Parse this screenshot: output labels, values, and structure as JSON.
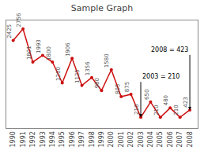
{
  "chart_data": {
    "type": "line",
    "title": "Sample Graph",
    "x": [
      1990,
      1991,
      1992,
      1993,
      1994,
      1995,
      1996,
      1997,
      1998,
      1999,
      2000,
      2001,
      2002,
      2003,
      2004,
      2005,
      2006,
      2007,
      2008
    ],
    "values": [
      2425,
      2756,
      1801,
      1993,
      1800,
      1200,
      1906,
      1125,
      1356,
      980,
      1580,
      805,
      875,
      210,
      650,
      210,
      480,
      210,
      423
    ],
    "color": "#cc1111",
    "marker": "circle",
    "line_style": "solid",
    "xlim": [
      1989.3,
      2008.8
    ],
    "xticks": [
      1990,
      1991,
      1992,
      1993,
      1994,
      1995,
      1996,
      1997,
      1998,
      1999,
      2000,
      2001,
      2002,
      2003,
      2004,
      2005,
      2006,
      2007,
      2008
    ],
    "ylim": [
      -100,
      3000
    ],
    "tick_labels": "x",
    "grid": false,
    "data_labels": true,
    "annotations": [
      {
        "text": "2003 = 210",
        "x": 2003,
        "y": 210
      },
      {
        "text": "2008 = 423",
        "x": 2008,
        "y": 423
      }
    ]
  }
}
